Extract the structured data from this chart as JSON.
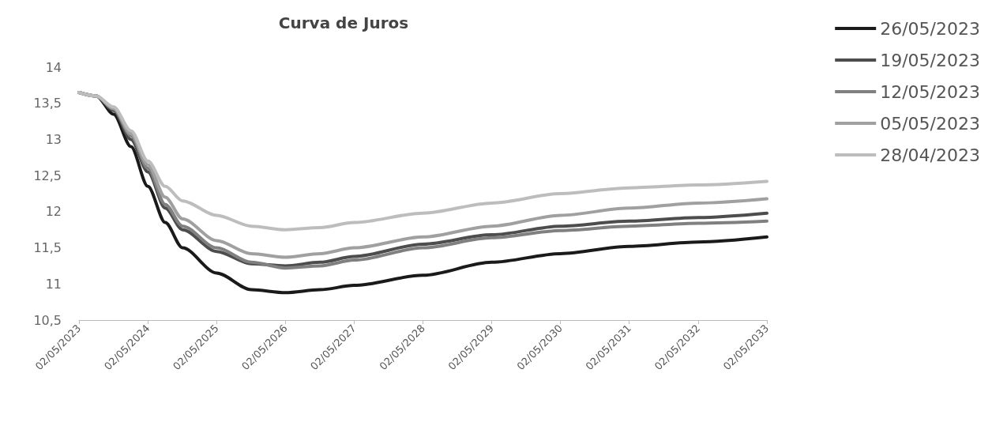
{
  "chart_data": {
    "type": "line",
    "title": "Curva de Juros",
    "x": [
      "2023-05-02",
      "2023-08-02",
      "2023-11-02",
      "2024-02-02",
      "2024-05-02",
      "2024-08-02",
      "2024-11-02",
      "2025-05-02",
      "2025-11-02",
      "2026-05-02",
      "2026-11-02",
      "2027-05-02",
      "2028-05-02",
      "2029-05-02",
      "2030-05-02",
      "2031-05-02",
      "2032-05-02",
      "2033-05-02"
    ],
    "series": [
      {
        "name": "26/05/2023",
        "color": "#1a1a1a",
        "values": [
          13.65,
          13.6,
          13.35,
          12.9,
          12.35,
          11.85,
          11.5,
          11.15,
          10.92,
          10.88,
          10.92,
          10.98,
          11.12,
          11.3,
          11.42,
          11.52,
          11.58,
          11.65
        ]
      },
      {
        "name": "19/05/2023",
        "color": "#4d4d4d",
        "values": [
          13.65,
          13.6,
          13.4,
          13.0,
          12.55,
          12.05,
          11.75,
          11.45,
          11.28,
          11.25,
          11.3,
          11.38,
          11.55,
          11.68,
          11.8,
          11.87,
          11.92,
          11.98
        ]
      },
      {
        "name": "12/05/2023",
        "color": "#808080",
        "values": [
          13.65,
          13.6,
          13.42,
          13.05,
          12.6,
          12.1,
          11.8,
          11.5,
          11.3,
          11.22,
          11.25,
          11.33,
          11.5,
          11.64,
          11.74,
          11.8,
          11.84,
          11.87
        ]
      },
      {
        "name": "05/05/2023",
        "color": "#a0a0a0",
        "values": [
          13.65,
          13.6,
          13.43,
          13.08,
          12.65,
          12.2,
          11.9,
          11.6,
          11.42,
          11.37,
          11.42,
          11.5,
          11.65,
          11.8,
          11.95,
          12.05,
          12.12,
          12.18
        ]
      },
      {
        "name": "28/04/2023",
        "color": "#bdbdbd",
        "values": [
          13.65,
          13.6,
          13.45,
          13.12,
          12.7,
          12.35,
          12.15,
          11.95,
          11.8,
          11.75,
          11.78,
          11.85,
          11.98,
          12.12,
          12.25,
          12.33,
          12.37,
          12.42
        ]
      }
    ],
    "xlim": [
      "2023-05-02",
      "2033-05-02"
    ],
    "xticks": [
      {
        "value": "2023-05-02",
        "label": "02/05/2023"
      },
      {
        "value": "2024-05-02",
        "label": "02/05/2024"
      },
      {
        "value": "2025-05-02",
        "label": "02/05/2025"
      },
      {
        "value": "2026-05-02",
        "label": "02/05/2026"
      },
      {
        "value": "2027-05-02",
        "label": "02/05/2027"
      },
      {
        "value": "2028-05-02",
        "label": "02/05/2028"
      },
      {
        "value": "2029-05-02",
        "label": "02/05/2029"
      },
      {
        "value": "2030-05-02",
        "label": "02/05/2030"
      },
      {
        "value": "2031-05-02",
        "label": "02/05/2031"
      },
      {
        "value": "2032-05-02",
        "label": "02/05/2032"
      },
      {
        "value": "2033-05-02",
        "label": "02/05/2033"
      }
    ],
    "ylim": [
      10.5,
      14
    ],
    "yticks": [
      {
        "value": 10.5,
        "label": "10,5"
      },
      {
        "value": 11,
        "label": "11"
      },
      {
        "value": 11.5,
        "label": "11,5"
      },
      {
        "value": 12,
        "label": "12"
      },
      {
        "value": 12.5,
        "label": "12,5"
      },
      {
        "value": 13,
        "label": "13"
      },
      {
        "value": 13.5,
        "label": "13,5"
      },
      {
        "value": 14,
        "label": "14"
      }
    ],
    "grid": false,
    "legend": "top right",
    "marker": "none",
    "line_style": "solid"
  }
}
